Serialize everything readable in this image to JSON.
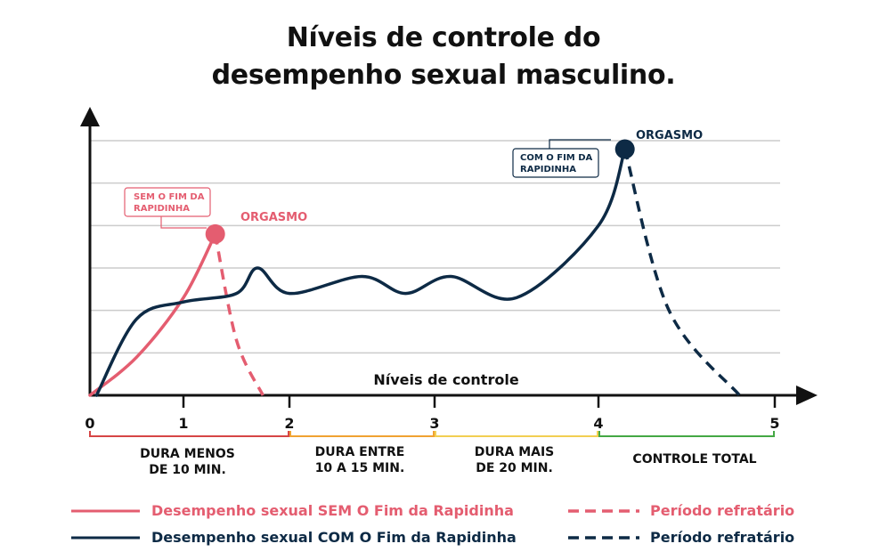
{
  "title": {
    "line1": "Níveis de controle do",
    "line2": "desempenho sexual masculino."
  },
  "colors": {
    "sem": "#e45d70",
    "com": "#0d2a45",
    "axis": "#111111",
    "grid": "#cccccc",
    "seg_red": "#d64545",
    "seg_orange": "#f0a232",
    "seg_yellow": "#f2cf52",
    "seg_green": "#44a844"
  },
  "chart_data": {
    "type": "line",
    "title": "Níveis de controle do desempenho sexual masculino.",
    "xlabel": "Níveis de controle",
    "ylabel": "",
    "xlim": [
      0,
      5
    ],
    "ylim": [
      0,
      6
    ],
    "x_ticks": [
      "0",
      "1",
      "2",
      "3",
      "4",
      "5"
    ],
    "grid": true,
    "series": [
      {
        "name": "Desempenho sexual SEM O Fim da Rapidinha",
        "style": "solid",
        "color": "#e45d70",
        "x": [
          0,
          0.5,
          1.0,
          1.3
        ],
        "y": [
          0,
          0.9,
          2.3,
          3.8
        ]
      },
      {
        "name": "Período refratário",
        "style": "dashed",
        "color": "#e45d70",
        "x": [
          1.3,
          1.5,
          1.75
        ],
        "y": [
          3.8,
          1.3,
          0
        ]
      },
      {
        "name": "Desempenho sexual COM O Fim da Rapidinha",
        "style": "solid",
        "color": "#0d2a45",
        "x": [
          0.07,
          0.5,
          1.0,
          1.5,
          1.7,
          2.0,
          2.5,
          2.8,
          3.1,
          3.5,
          4.0,
          4.15
        ],
        "y": [
          0,
          1.8,
          2.2,
          2.4,
          3.0,
          2.4,
          2.8,
          2.4,
          2.8,
          2.3,
          4.0,
          5.8
        ]
      },
      {
        "name": "Período refratário",
        "style": "dashed",
        "color": "#0d2a45",
        "x": [
          4.15,
          4.4,
          4.8
        ],
        "y": [
          5.8,
          2.0,
          0
        ]
      }
    ],
    "annotations": [
      {
        "text": "ORGASMO",
        "series": "sem",
        "x": 1.3,
        "y": 3.8
      },
      {
        "text": "ORGASMO",
        "series": "com",
        "x": 4.15,
        "y": 5.8
      }
    ],
    "callouts": {
      "sem": "SEM O FIM DA RAPIDINHA",
      "com": "COM O FIM DA RAPIDINHA"
    },
    "segments": [
      {
        "from": 0,
        "to": 2,
        "label": "DURA MENOS DE 10 MIN.",
        "color": "#d64545"
      },
      {
        "from": 2,
        "to": 3,
        "label": "DURA ENTRE 10 A 15 MIN.",
        "color": "#f0a232"
      },
      {
        "from": 3,
        "to": 4,
        "label": "DURA MAIS DE 20 MIN.",
        "color": "#f2cf52"
      },
      {
        "from": 4,
        "to": 5,
        "label": "CONTROLE TOTAL",
        "color": "#44a844"
      }
    ]
  },
  "legend": {
    "sem_label": "Desempenho sexual SEM O Fim da Rapidinha",
    "com_label": "Desempenho sexual COM O Fim da Rapidinha",
    "refractory_label": "Período refratário"
  }
}
